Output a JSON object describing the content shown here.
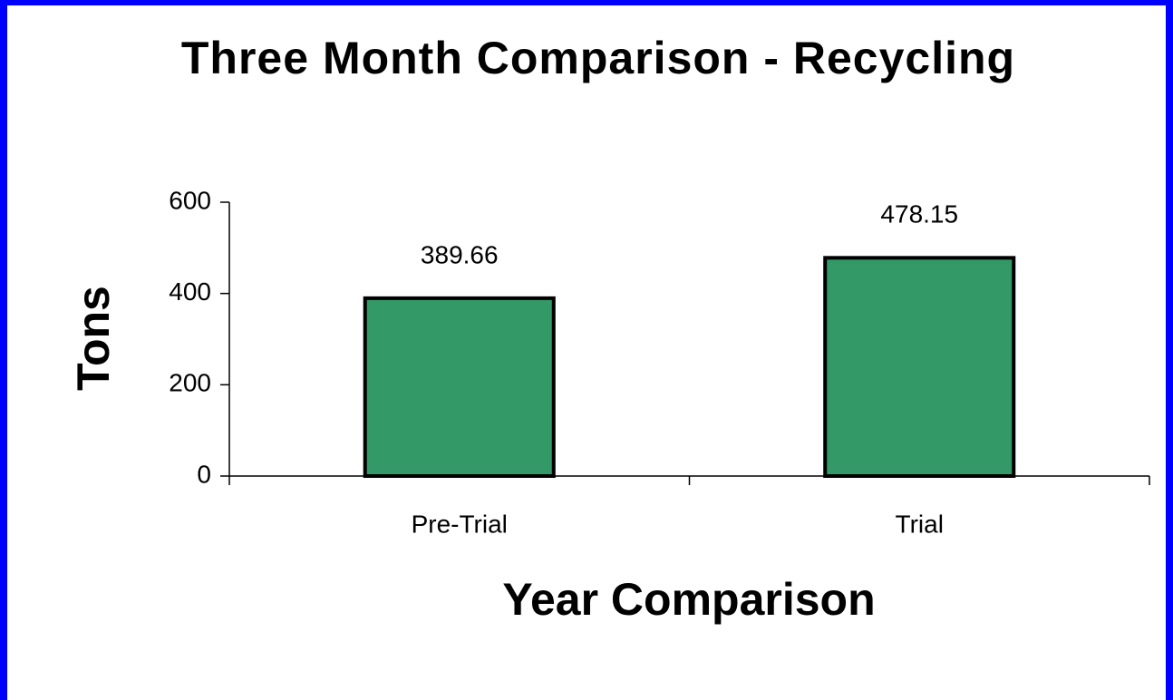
{
  "chart_data": {
    "type": "bar",
    "title": "Three Month Comparison - Recycling",
    "x_label": "Year Comparison",
    "y_label": "Tons",
    "categories": [
      "Pre-Trial",
      "Trial"
    ],
    "values": [
      389.66,
      478.15
    ],
    "color": "#339966",
    "ylim": [
      0,
      600
    ],
    "yticks": [
      0,
      200,
      400,
      600
    ],
    "grid": false
  }
}
